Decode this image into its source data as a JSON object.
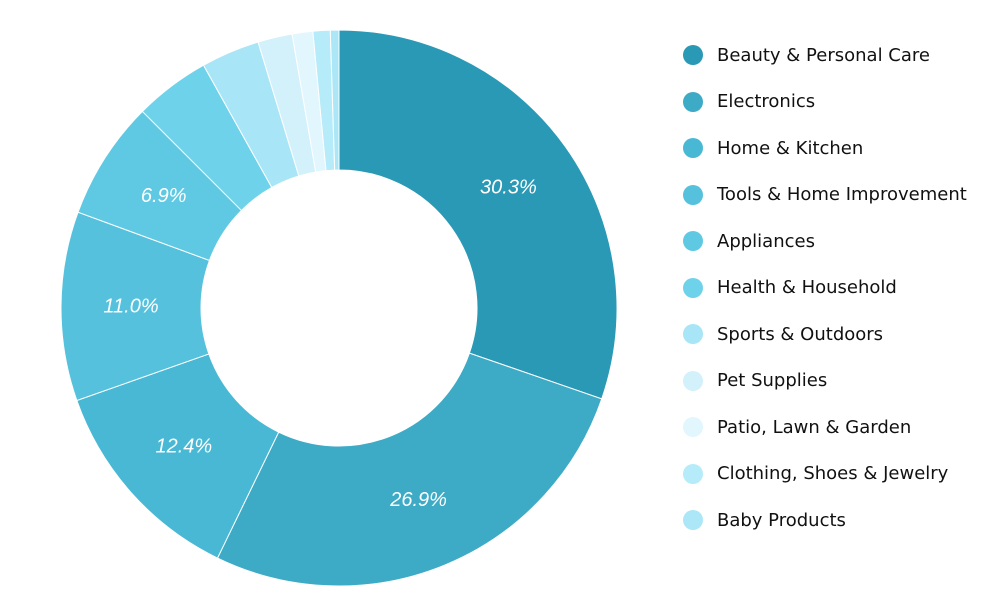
{
  "chart_data": {
    "type": "pie",
    "variant": "donut",
    "legend_position": "right",
    "slices": [
      {
        "name": "Beauty & Personal Care",
        "value": 30.3,
        "label": "30.3%",
        "color": "#2a99b6"
      },
      {
        "name": "Electronics",
        "value": 26.9,
        "label": "26.9%",
        "color": "#3daac6"
      },
      {
        "name": "Home & Kitchen",
        "value": 12.4,
        "label": "12.4%",
        "color": "#48b8d4"
      },
      {
        "name": "Tools & Home Improvement",
        "value": 11.0,
        "label": "11.0%",
        "color": "#56c1dd"
      },
      {
        "name": "Appliances",
        "value": 6.9,
        "label": "6.9%",
        "color": "#5fc9e3"
      },
      {
        "name": "Health & Household",
        "value": 4.4,
        "label": "",
        "color": "#6ed2ea"
      },
      {
        "name": "Sports & Outdoors",
        "value": 3.4,
        "label": "",
        "color": "#a8e6f7"
      },
      {
        "name": "Pet Supplies",
        "value": 2.0,
        "label": "",
        "color": "#d2f1fb"
      },
      {
        "name": "Patio, Lawn & Garden",
        "value": 1.2,
        "label": "",
        "color": "#e2f6fd"
      },
      {
        "name": "Clothing, Shoes & Jewelry",
        "value": 1.0,
        "label": "",
        "color": "#b6ebf9"
      },
      {
        "name": "Baby Products",
        "value": 0.5,
        "label": "",
        "color": "#ace7f8"
      }
    ]
  }
}
